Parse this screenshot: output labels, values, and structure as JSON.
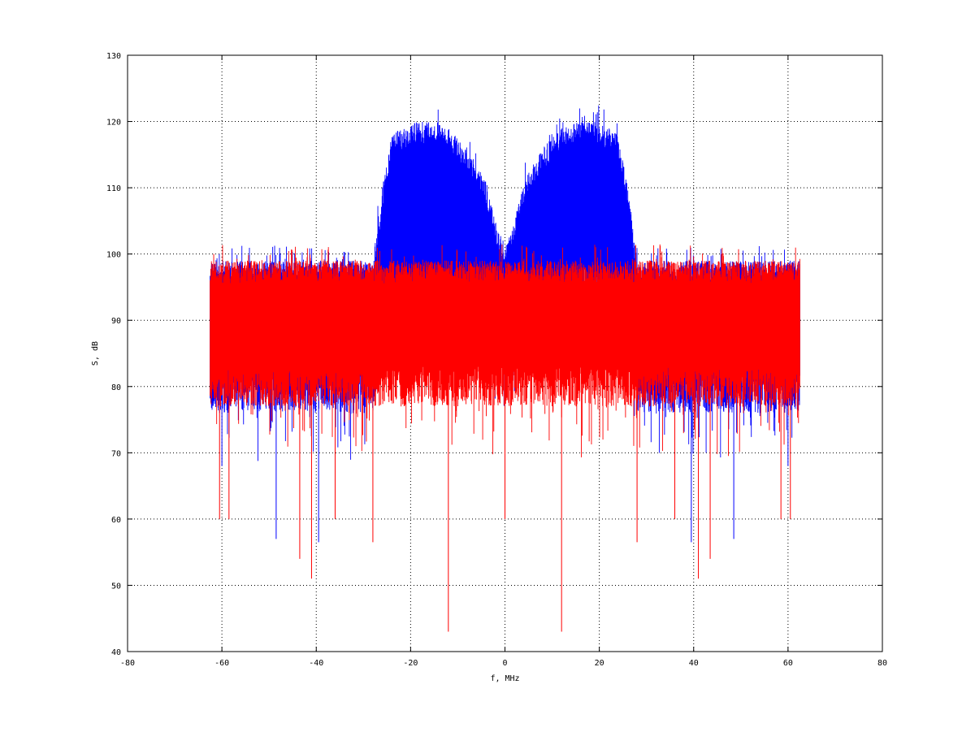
{
  "chart_data": {
    "type": "line",
    "title": "",
    "xlabel": "f, MHz",
    "ylabel": "S, dB",
    "xlim": [
      -80,
      80
    ],
    "ylim": [
      40,
      130
    ],
    "xticks": [
      -80,
      -60,
      -40,
      -20,
      0,
      20,
      40,
      60,
      80
    ],
    "yticks": [
      40,
      50,
      60,
      70,
      80,
      90,
      100,
      110,
      120,
      130
    ],
    "grid": true,
    "legend": "none",
    "colors": {
      "series_blue": "#0000ff",
      "series_red": "#ff0000",
      "grid": "#000000"
    },
    "series": [
      {
        "color": "#0000ff",
        "style": "dense-noise-spectrum",
        "x_range": [
          -62.5,
          62.5
        ],
        "envelope": {
          "x": [
            -62.5,
            -50,
            -40,
            -30,
            -28,
            -26,
            -24,
            -20,
            -16,
            -12,
            -8,
            -4,
            -2,
            0,
            2,
            4,
            8,
            12,
            16,
            20,
            24,
            26,
            28,
            30,
            40,
            50,
            62.5
          ],
          "upper": [
            99,
            99,
            99,
            99,
            99,
            110,
            118,
            120,
            120,
            119,
            116,
            111,
            105,
            101,
            105,
            111,
            116,
            119,
            120,
            120,
            118,
            110,
            99,
            99,
            99,
            99,
            99
          ],
          "lower": [
            82,
            82,
            82,
            82,
            82,
            92,
            96,
            98,
            98,
            97,
            95,
            92,
            90,
            88,
            90,
            92,
            95,
            97,
            98,
            98,
            96,
            92,
            82,
            82,
            82,
            82,
            82
          ]
        },
        "spikes": [
          [
            -48.5,
            57
          ],
          [
            -39.5,
            56.5
          ],
          [
            39.5,
            56.5
          ],
          [
            48.5,
            57
          ],
          [
            -60,
            68
          ],
          [
            60,
            68
          ],
          [
            -24,
            98
          ],
          [
            24,
            98
          ]
        ]
      },
      {
        "color": "#ff0000",
        "style": "dense-noise-spectrum",
        "x_range": [
          -62.5,
          62.5
        ],
        "envelope": {
          "x": [
            -62.5,
            -40,
            -20,
            0,
            20,
            40,
            62.5
          ],
          "upper": [
            99,
            99,
            99,
            99,
            99,
            99,
            99
          ],
          "lower": [
            83,
            83,
            83,
            83,
            83,
            83,
            83
          ]
        },
        "spikes": [
          [
            -12,
            43
          ],
          [
            12,
            43
          ],
          [
            -41,
            51
          ],
          [
            41,
            51
          ],
          [
            -43.5,
            54
          ],
          [
            43.5,
            54
          ],
          [
            -60.5,
            60
          ],
          [
            60.5,
            60
          ],
          [
            -58.5,
            60
          ],
          [
            58.5,
            60
          ],
          [
            -28,
            56.5
          ],
          [
            28,
            56.5
          ],
          [
            0,
            60
          ],
          [
            -36,
            60
          ],
          [
            36,
            60
          ]
        ]
      }
    ]
  }
}
